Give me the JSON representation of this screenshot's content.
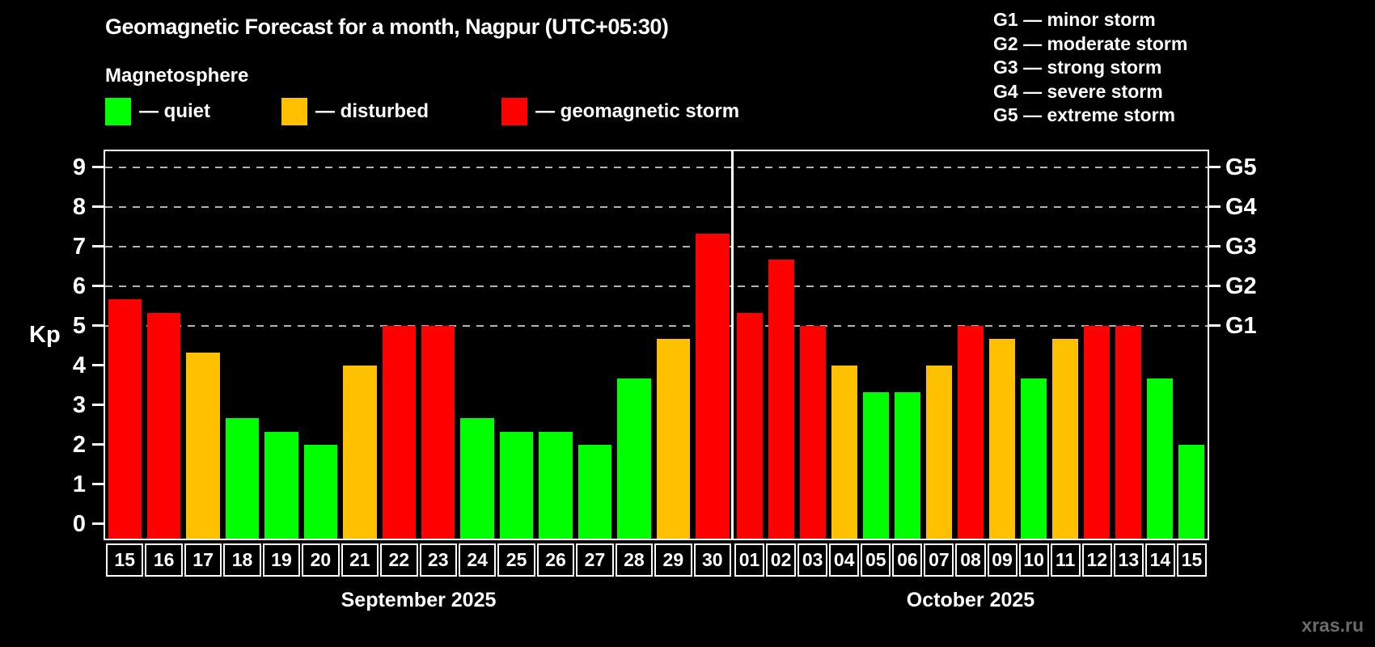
{
  "header": {
    "title": "Geomagnetic Forecast for a month, Nagpur (UTC+05:30)",
    "subtitle": "Magnetosphere"
  },
  "legend": [
    {
      "key": "quiet",
      "label": "— quiet",
      "color": "#00ff00"
    },
    {
      "key": "disturbed",
      "label": "— disturbed",
      "color": "#ffc000"
    },
    {
      "key": "storm",
      "label": "— geomagnetic storm",
      "color": "#ff0000"
    }
  ],
  "g_legend": [
    "G1 — minor storm",
    "G2 — moderate storm",
    "G3 — strong storm",
    "G4 — severe storm",
    "G5 — extreme storm"
  ],
  "watermark": "xras.ru",
  "chart_data": {
    "type": "bar",
    "title": "Geomagnetic Forecast for a month, Nagpur (UTC+05:30)",
    "xlabel": "",
    "ylabel": "Kp",
    "ylim": [
      0,
      9.5
    ],
    "yticks": [
      0,
      1,
      2,
      3,
      4,
      5,
      6,
      7,
      8,
      9
    ],
    "gridlines_at": [
      5,
      6,
      7,
      8,
      9
    ],
    "grid_style": "dashed horizontal lines only at G-storm levels",
    "legend_position": "top-left",
    "right_axis": [
      {
        "label": "G1",
        "kp": 5
      },
      {
        "label": "G2",
        "kp": 6
      },
      {
        "label": "G3",
        "kp": 7
      },
      {
        "label": "G4",
        "kp": 8
      },
      {
        "label": "G5",
        "kp": 9
      }
    ],
    "color_map": {
      "quiet": "#00ff00",
      "disturbed": "#ffc000",
      "storm": "#ff0000"
    },
    "months": [
      {
        "label": "September 2025",
        "days": [
          {
            "day": "15",
            "kp": 5.67,
            "status": "storm"
          },
          {
            "day": "16",
            "kp": 5.33,
            "status": "storm"
          },
          {
            "day": "17",
            "kp": 4.33,
            "status": "disturbed"
          },
          {
            "day": "18",
            "kp": 2.67,
            "status": "quiet"
          },
          {
            "day": "19",
            "kp": 2.33,
            "status": "quiet"
          },
          {
            "day": "20",
            "kp": 2.0,
            "status": "quiet"
          },
          {
            "day": "21",
            "kp": 4.0,
            "status": "disturbed"
          },
          {
            "day": "22",
            "kp": 5.0,
            "status": "storm"
          },
          {
            "day": "23",
            "kp": 5.0,
            "status": "storm"
          },
          {
            "day": "24",
            "kp": 2.67,
            "status": "quiet"
          },
          {
            "day": "25",
            "kp": 2.33,
            "status": "quiet"
          },
          {
            "day": "26",
            "kp": 2.33,
            "status": "quiet"
          },
          {
            "day": "27",
            "kp": 2.0,
            "status": "quiet"
          },
          {
            "day": "28",
            "kp": 3.67,
            "status": "quiet"
          },
          {
            "day": "29",
            "kp": 4.67,
            "status": "disturbed"
          },
          {
            "day": "30",
            "kp": 7.33,
            "status": "storm"
          }
        ]
      },
      {
        "label": "October 2025",
        "days": [
          {
            "day": "01",
            "kp": 5.33,
            "status": "storm"
          },
          {
            "day": "02",
            "kp": 6.67,
            "status": "storm"
          },
          {
            "day": "03",
            "kp": 5.0,
            "status": "storm"
          },
          {
            "day": "04",
            "kp": 4.0,
            "status": "disturbed"
          },
          {
            "day": "05",
            "kp": 3.33,
            "status": "quiet"
          },
          {
            "day": "06",
            "kp": 3.33,
            "status": "quiet"
          },
          {
            "day": "07",
            "kp": 4.0,
            "status": "disturbed"
          },
          {
            "day": "08",
            "kp": 5.0,
            "status": "storm"
          },
          {
            "day": "09",
            "kp": 4.67,
            "status": "disturbed"
          },
          {
            "day": "10",
            "kp": 3.67,
            "status": "quiet"
          },
          {
            "day": "11",
            "kp": 4.67,
            "status": "disturbed"
          },
          {
            "day": "12",
            "kp": 5.0,
            "status": "storm"
          },
          {
            "day": "13",
            "kp": 5.0,
            "status": "storm"
          },
          {
            "day": "14",
            "kp": 3.67,
            "status": "quiet"
          },
          {
            "day": "15",
            "kp": 2.0,
            "status": "quiet"
          }
        ]
      }
    ]
  }
}
